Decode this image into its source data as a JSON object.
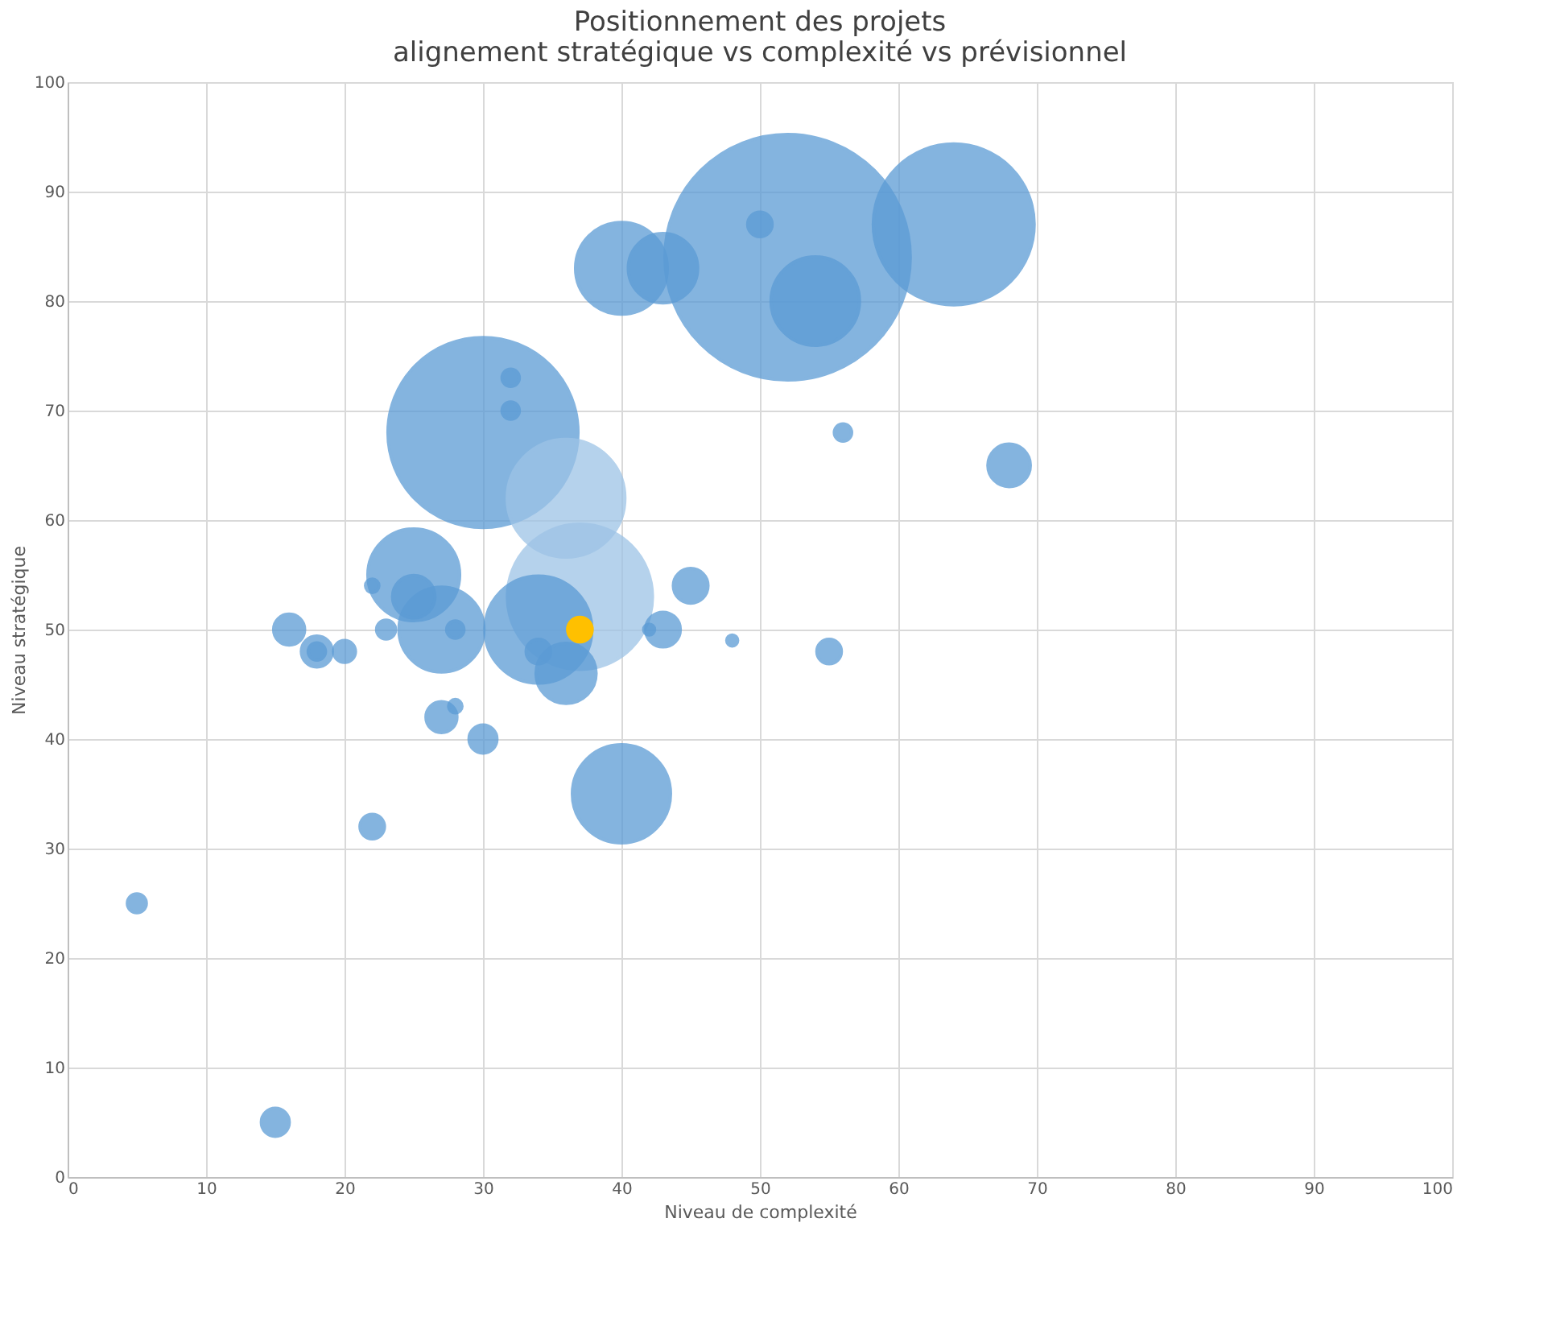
{
  "chart_data": {
    "type": "bubble",
    "title": [
      "Positionnement des projets",
      "alignement stratégique vs complexité vs prévisionnel"
    ],
    "xlabel": "Niveau de complexité",
    "ylabel": "Niveau stratégique",
    "x": [
      52,
      30,
      64,
      37,
      36,
      34,
      40,
      40,
      54,
      43,
      25,
      27,
      36,
      25,
      68,
      45,
      43,
      16,
      18,
      27,
      30,
      34,
      15,
      55,
      22,
      20,
      50,
      18,
      23,
      5,
      56,
      32,
      32,
      28,
      22,
      28,
      48,
      42,
      37
    ],
    "values": [
      84,
      68,
      87,
      53,
      62,
      50,
      35,
      83,
      80,
      83,
      55,
      50,
      46,
      53,
      65,
      54,
      50,
      50,
      48,
      42,
      40,
      48,
      5,
      48,
      32,
      48,
      87,
      48,
      50,
      25,
      68,
      73,
      70,
      50,
      54,
      43,
      49,
      50,
      50
    ],
    "sizes": [
      1,
      0.6,
      0.43,
      0.35,
      0.23,
      0.19,
      0.16,
      0.14,
      0.13,
      0.08,
      0.14,
      0.12,
      0.06,
      0.03,
      0.03,
      0.02,
      0.02,
      0.016,
      0.016,
      0.016,
      0.013,
      0.01,
      0.013,
      0.01,
      0.01,
      0.008,
      0.01,
      0.005,
      0.006,
      0.006,
      0.005,
      0.005,
      0.005,
      0.005,
      0.003,
      0.003,
      0.002,
      0.002,
      0.01
    ],
    "colors": [
      "#5b9bd5",
      "#5b9bd5",
      "#5b9bd5",
      "#9dc3e6",
      "#9dc3e6",
      "#5b9bd5",
      "#5b9bd5",
      "#5b9bd5",
      "#5b9bd5",
      "#5b9bd5",
      "#5b9bd5",
      "#5b9bd5",
      "#5b9bd5",
      "#5b9bd5",
      "#5b9bd5",
      "#5b9bd5",
      "#5b9bd5",
      "#5b9bd5",
      "#5b9bd5",
      "#5b9bd5",
      "#5b9bd5",
      "#5b9bd5",
      "#5b9bd5",
      "#5b9bd5",
      "#5b9bd5",
      "#5b9bd5",
      "#5b9bd5",
      "#5b9bd5",
      "#5b9bd5",
      "#5b9bd5",
      "#5b9bd5",
      "#5b9bd5",
      "#5b9bd5",
      "#5b9bd5",
      "#5b9bd5",
      "#5b9bd5",
      "#5b9bd5",
      "#5b9bd5",
      "#ffc000"
    ],
    "xlim": [
      0,
      100
    ],
    "xticks": [
      0,
      10,
      20,
      30,
      40,
      50,
      60,
      70,
      80,
      90,
      100
    ],
    "ylim": [
      0,
      100
    ],
    "yticks": [
      0,
      10,
      20,
      30,
      40,
      50,
      60,
      70,
      80,
      90,
      100
    ],
    "grid": true,
    "legend": false
  }
}
